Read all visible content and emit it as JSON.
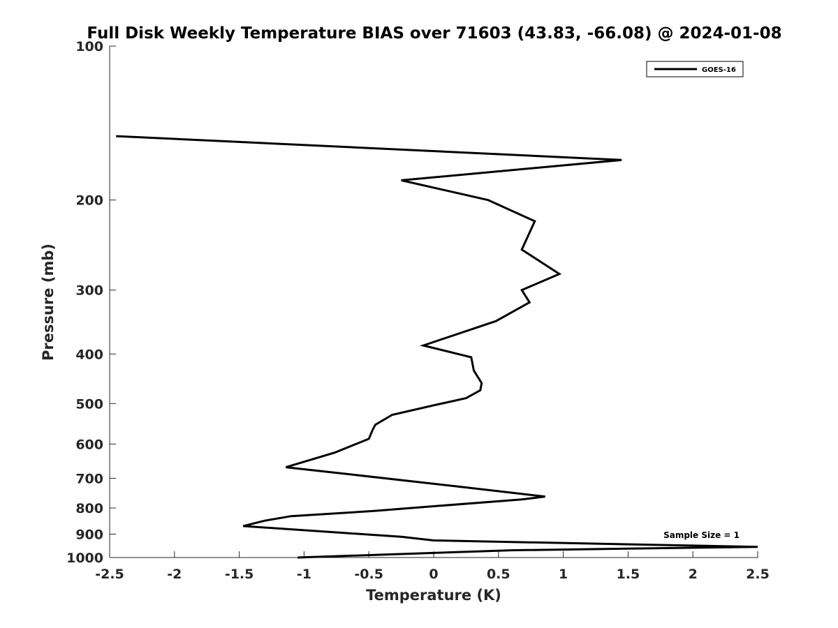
{
  "chart_data": {
    "type": "line",
    "title": "Full Disk Weekly Temperature BIAS over 71603 (43.83, -66.08) @ 2024-01-08",
    "xlabel": "Temperature (K)",
    "ylabel": "Pressure (mb)",
    "xlim": [
      -2.5,
      2.5
    ],
    "ylim": [
      100,
      1000
    ],
    "y_scale": "log",
    "y_reversed": true,
    "grid": false,
    "x_ticks": [
      -2.5,
      -2,
      -1.5,
      -1,
      -0.5,
      0,
      0.5,
      1,
      1.5,
      2,
      2.5
    ],
    "x_tick_labels": [
      "-2.5",
      "-2",
      "-1.5",
      "-1",
      "-0.5",
      "0",
      "0.5",
      "1",
      "1.5",
      "2",
      "2.5"
    ],
    "y_ticks": [
      100,
      200,
      300,
      400,
      500,
      600,
      700,
      800,
      900,
      1000
    ],
    "y_tick_labels": [
      "100",
      "200",
      "300",
      "400",
      "500",
      "600",
      "700",
      "800",
      "900",
      "1000"
    ],
    "legend": {
      "position": "top-right",
      "entries": [
        "GOES-16"
      ]
    },
    "annotation": "Sample Size = 1",
    "line_color": "#000000",
    "series": [
      {
        "name": "GOES-16",
        "x": [
          -2.45,
          1.45,
          -0.25,
          0.42,
          0.78,
          0.68,
          0.97,
          0.68,
          0.74,
          0.48,
          -0.08,
          0.29,
          0.31,
          0.37,
          0.36,
          0.25,
          0.0,
          -0.32,
          -0.45,
          -0.47,
          -0.5,
          -0.76,
          -1.14,
          -0.75,
          0.2,
          0.86,
          0.68,
          0.05,
          -0.46,
          -1.1,
          -1.3,
          -1.47,
          -0.25,
          0.0,
          2.5,
          0.6,
          -1.05
        ],
        "y": [
          150,
          167,
          183,
          200,
          220,
          250,
          279,
          300,
          317,
          345,
          385,
          406,
          431,
          456,
          471,
          488,
          504,
          526,
          550,
          562,
          586,
          623,
          666,
          683,
          727,
          760,
          770,
          792,
          811,
          830,
          847,
          868,
          911,
          926,
          953,
          968,
          1000
        ]
      }
    ]
  }
}
